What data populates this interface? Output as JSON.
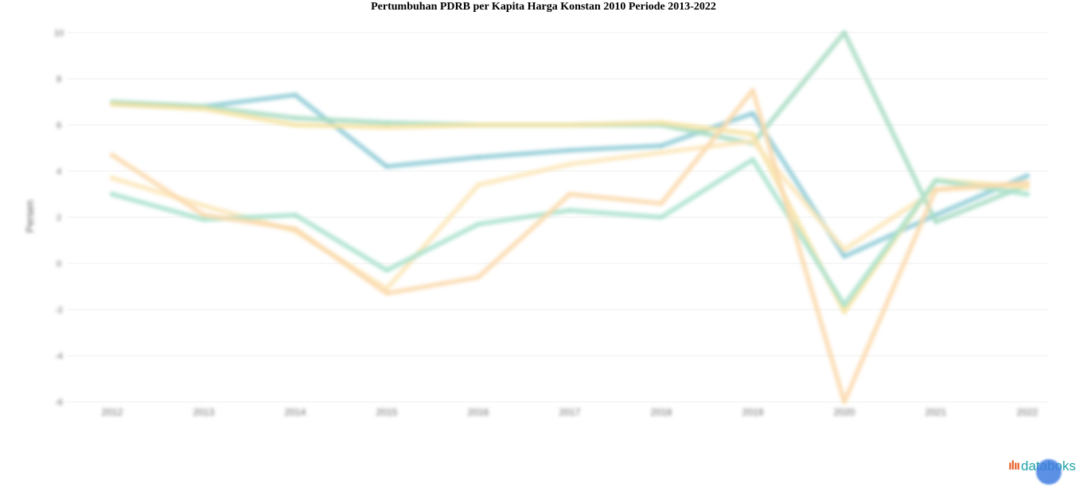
{
  "title": "Pertumbuhan PDRB per Kapita Harga Konstan 2010 Periode 2013-2022",
  "brand": {
    "mark": "ılıı",
    "text": "databoks",
    "icon": "databoks-logo"
  },
  "fab": {
    "icon": "chat-bubble-icon"
  },
  "chart_data": {
    "type": "line",
    "title": "Pertumbuhan PDRB per Kapita Harga Konstan 2010 Periode 2013-2022",
    "xlabel": "",
    "ylabel": "Persen",
    "categories": [
      "2012",
      "2013",
      "2014",
      "2015",
      "2016",
      "2017",
      "2018",
      "2019",
      "2020",
      "2021",
      "2022"
    ],
    "y_ticks": [
      "-6",
      "-4",
      "-2",
      "0",
      "2",
      "4",
      "6",
      "8",
      "10"
    ],
    "ylim": [
      -6,
      10
    ],
    "grid": true,
    "legend": "none",
    "series": [
      {
        "color": "#8fcbd6",
        "values": [
          6.9,
          6.8,
          7.3,
          4.2,
          4.6,
          4.9,
          5.1,
          6.5,
          0.3,
          2.1,
          3.8
        ]
      },
      {
        "color": "#a8dcc3",
        "values": [
          7.0,
          6.8,
          6.3,
          6.1,
          6.0,
          6.0,
          6.0,
          5.2,
          10.0,
          1.8,
          3.4
        ]
      },
      {
        "color": "#f6e3a2",
        "values": [
          6.9,
          6.7,
          6.0,
          5.9,
          6.0,
          6.0,
          6.1,
          5.6,
          -2.1,
          3.6,
          3.3
        ]
      },
      {
        "color": "#fbe6b8",
        "values": [
          3.7,
          2.5,
          1.4,
          -1.1,
          3.4,
          4.3,
          4.8,
          5.3,
          0.6,
          3.2,
          3.4
        ]
      },
      {
        "color": "#a9e2cc",
        "values": [
          3.0,
          1.9,
          2.1,
          -0.3,
          1.7,
          2.3,
          2.0,
          4.5,
          -1.8,
          3.6,
          3.0
        ]
      },
      {
        "color": "#fad9ad",
        "values": [
          4.7,
          2.1,
          1.5,
          -1.3,
          -0.6,
          3.0,
          2.6,
          7.5,
          -6.0,
          3.2,
          3.5
        ]
      }
    ]
  }
}
